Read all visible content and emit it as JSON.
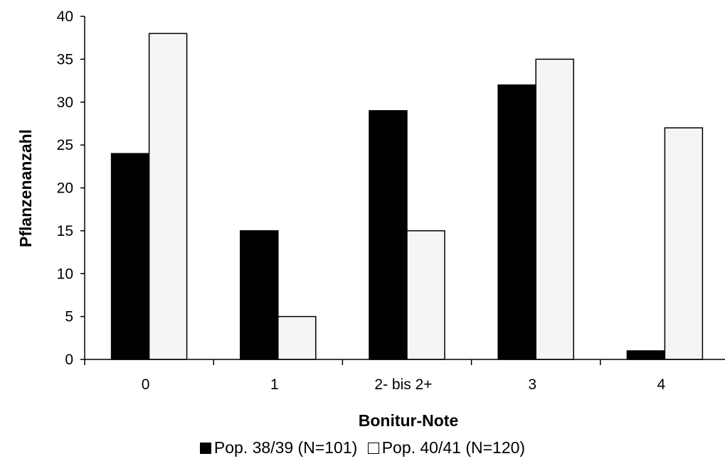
{
  "chart_data": {
    "type": "bar",
    "title": "",
    "xlabel": "Bonitur-Note",
    "ylabel": "Pflanzenanzahl",
    "categories": [
      "0",
      "1",
      "2- bis 2+",
      "3",
      "4"
    ],
    "series": [
      {
        "name": "Pop. 38/39 (N=101)",
        "values": [
          24,
          15,
          29,
          32,
          1
        ],
        "color": "#000000"
      },
      {
        "name": "Pop. 40/41 (N=120)",
        "values": [
          38,
          5,
          15,
          35,
          27
        ],
        "color": "#f5f5f5"
      }
    ],
    "ylim": [
      0,
      40
    ],
    "yticks": [
      0,
      5,
      10,
      15,
      20,
      25,
      30,
      35,
      40
    ],
    "grid": false,
    "legend_position": "bottom"
  }
}
